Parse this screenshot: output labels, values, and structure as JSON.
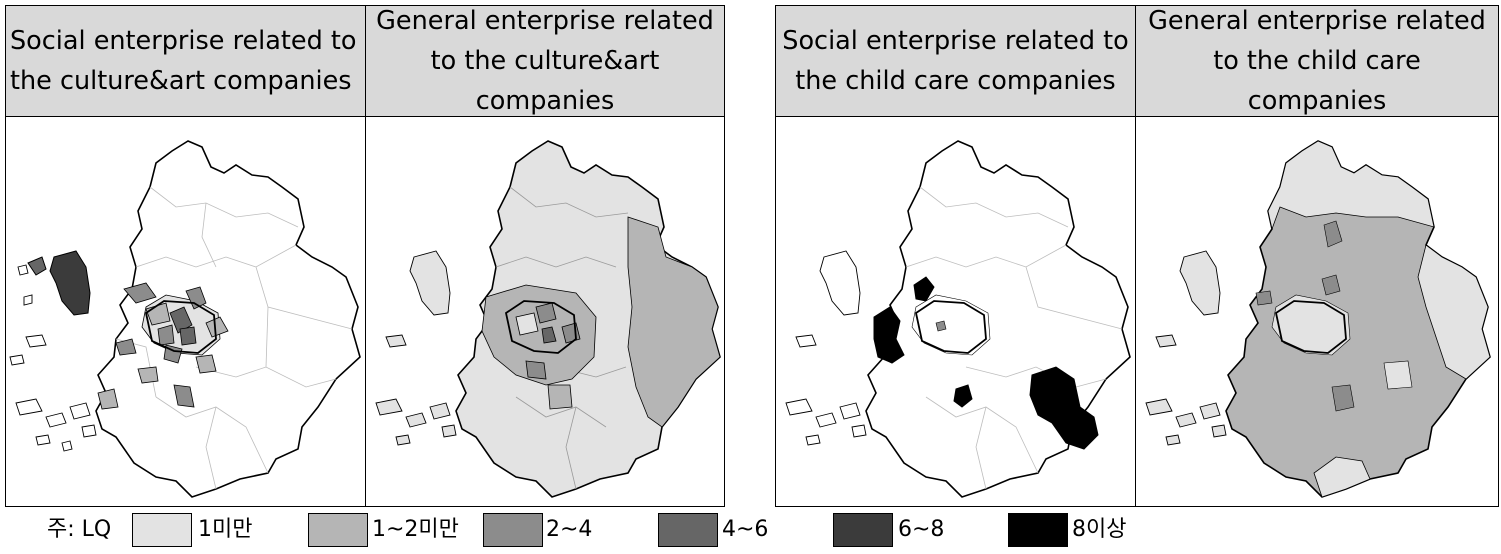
{
  "panels": [
    {
      "id": "p1",
      "title": "Social enterprise related to the culture&art companies"
    },
    {
      "id": "p2",
      "title": "General enterprise related to the culture&art companies"
    },
    {
      "id": "p3",
      "title": "Social enterprise related to the child care companies"
    },
    {
      "id": "p4",
      "title": "General enterprise related to the child care companies"
    }
  ],
  "legend": {
    "prefix": "주: LQ",
    "classes": [
      {
        "label": "1미만",
        "color": "#e3e3e3"
      },
      {
        "label": "1~2미만",
        "color": "#b5b5b5"
      },
      {
        "label": "2~4",
        "color": "#8c8c8c"
      },
      {
        "label": "4~6",
        "color": "#666666"
      },
      {
        "label": "6~8",
        "color": "#3b3b3b"
      },
      {
        "label": "8이상",
        "color": "#000000"
      }
    ]
  }
}
